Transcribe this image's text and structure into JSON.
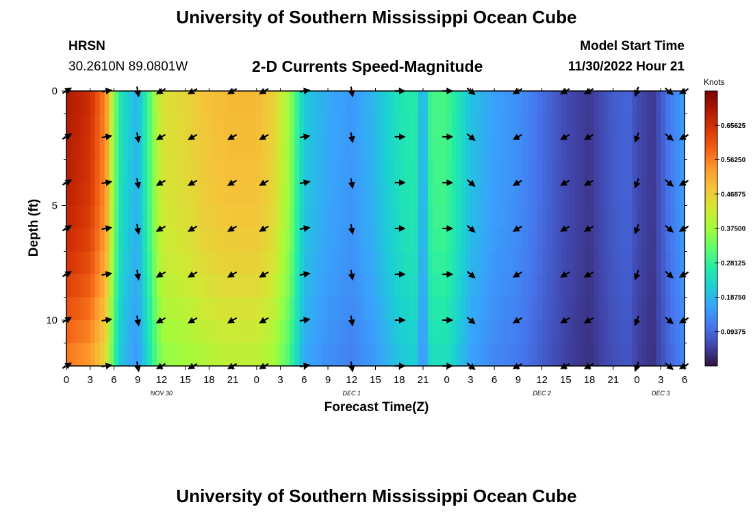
{
  "header": {
    "title": "University of Southern Mississippi Ocean Cube",
    "station": "HRSN",
    "coords": "30.2610N  89.0801W",
    "subtitle": "2-D Currents Speed-Magnitude",
    "model_start_label": "Model Start Time",
    "model_start_value": "11/30/2022 Hour 21"
  },
  "footer": {
    "title": "University of Southern Mississippi Ocean Cube"
  },
  "chart_data": {
    "type": "heatmap",
    "xlabel": "Forecast Time(Z)",
    "ylabel": "Depth (ft)",
    "x_tick_labels": [
      "0",
      "3",
      "6",
      "9",
      "12",
      "15",
      "18",
      "21",
      "0",
      "3",
      "6",
      "9",
      "12",
      "15",
      "18",
      "21",
      "0",
      "3",
      "6",
      "9",
      "12",
      "15",
      "18",
      "21",
      "0",
      "3",
      "6"
    ],
    "date_labels": [
      {
        "label": "NOV 30",
        "at_hour": 12
      },
      {
        "label": "DEC 1",
        "at_hour": 36
      },
      {
        "label": "DEC 2",
        "at_hour": 60
      },
      {
        "label": "DEC 3",
        "at_hour": 75
      }
    ],
    "x_range_hours": [
      0,
      78
    ],
    "y_ticks": [
      "0",
      "5",
      "10"
    ],
    "y_range_ft": [
      0,
      12
    ],
    "y_inverted": true,
    "colorbar": {
      "title": "Knots",
      "ticks": [
        "0.65625",
        "0.56250",
        "0.46875",
        "0.37500",
        "0.28125",
        "0.18750",
        "0.09375"
      ],
      "range": [
        0,
        0.75
      ]
    },
    "colormap": [
      "#30123b",
      "#4145ab",
      "#4675ed",
      "#39a2fc",
      "#1bcfd4",
      "#24eca6",
      "#61fc6c",
      "#a4fc3b",
      "#d1e834",
      "#f3c63a",
      "#fe9b2d",
      "#f36315",
      "#d93806",
      "#b11901",
      "#7a0402"
    ],
    "speed_profile_hours": [
      0,
      3,
      5,
      6,
      7,
      9,
      12,
      15,
      18,
      21,
      24,
      26,
      28,
      30,
      33,
      36,
      39,
      42,
      44,
      45,
      46,
      48,
      51,
      54,
      57,
      60,
      63,
      66,
      69,
      71,
      72,
      74,
      76,
      78
    ],
    "speed_profile_knots": [
      0.7,
      0.66,
      0.55,
      0.35,
      0.24,
      0.18,
      0.44,
      0.46,
      0.49,
      0.5,
      0.5,
      0.47,
      0.38,
      0.21,
      0.17,
      0.15,
      0.19,
      0.25,
      0.27,
      0.16,
      0.3,
      0.3,
      0.2,
      0.16,
      0.14,
      0.1,
      0.06,
      0.04,
      0.08,
      0.09,
      0.06,
      0.04,
      0.11,
      0.16
    ],
    "depth_factor_ft": [
      0,
      2,
      4,
      6,
      8,
      10,
      12
    ],
    "depth_factor": [
      1.0,
      0.99,
      0.98,
      0.96,
      0.92,
      0.86,
      0.8
    ],
    "arrow_hours": [
      0,
      5,
      9,
      12,
      16,
      21,
      25,
      30,
      36,
      42,
      48,
      51,
      57,
      63,
      66,
      72,
      76,
      78
    ],
    "arrow_depths_ft": [
      0,
      2,
      4,
      6,
      8,
      10,
      12
    ],
    "arrow_directions_deg": [
      60,
      80,
      170,
      240,
      240,
      240,
      240,
      80,
      170,
      90,
      90,
      130,
      240,
      240,
      240,
      200,
      130,
      240
    ]
  }
}
